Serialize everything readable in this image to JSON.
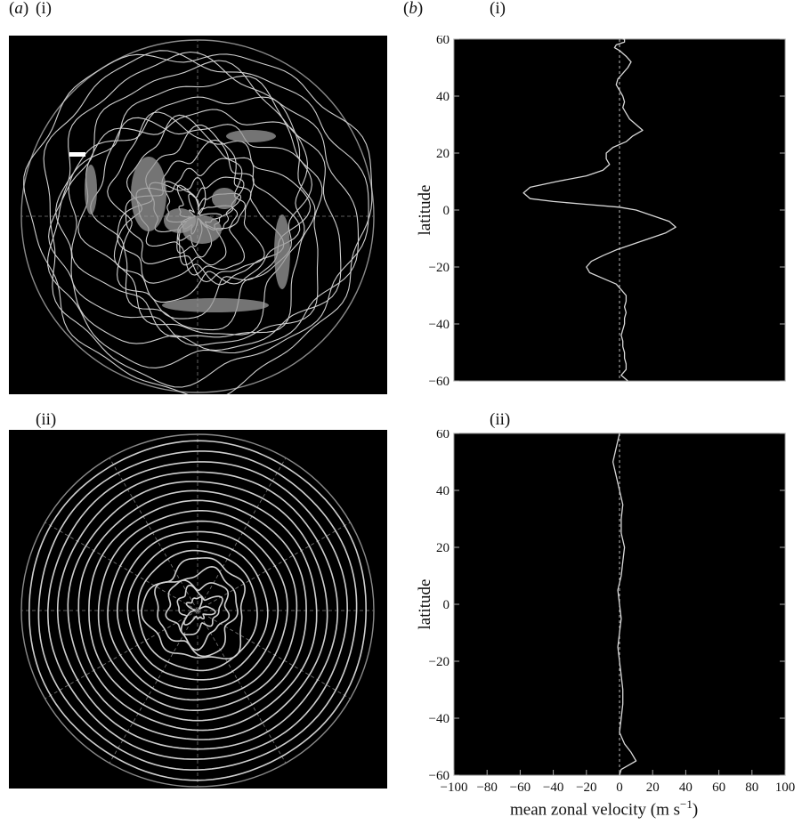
{
  "labels": {
    "a": "a",
    "b": "b",
    "a_i": "(i)",
    "b_i": "(i)",
    "a_ii": "(ii)",
    "b_ii": "(ii)"
  },
  "axes": {
    "ylabel": "latitude",
    "xlabel_main": "mean zonal velocity (m s",
    "xlabel_sup": "−1",
    "xlabel_end": ")"
  },
  "chart_data": [
    {
      "type": "line",
      "panel": "(b)(i)",
      "ylabel": "latitude",
      "ylim": [
        -60,
        60
      ],
      "xlim": [
        -100,
        100
      ],
      "yticks": [
        "60",
        "40",
        "20",
        "0",
        "−20",
        "−40",
        "−60"
      ],
      "xticks": [],
      "reference_line_x": 0,
      "series": [
        {
          "x": [
            5,
            1,
            4,
            4,
            3,
            3,
            2,
            2,
            1,
            2,
            3,
            3,
            4,
            3,
            4,
            4,
            1,
            -2,
            -10,
            -18,
            -20,
            -17,
            -10,
            -2,
            8,
            18,
            28,
            34,
            30,
            20,
            10,
            0,
            -20,
            -40,
            -54,
            -58,
            -54,
            -38,
            -20,
            -10,
            -6,
            -8,
            -8,
            -4,
            4,
            8,
            14,
            10,
            6,
            4,
            2,
            3,
            2,
            0,
            -2,
            -1,
            2,
            5,
            7,
            4,
            0,
            -3,
            -2,
            3,
            3,
            2
          ],
          "y": [
            -60,
            -58,
            -56,
            -54,
            -52,
            -50,
            -48,
            -46,
            -44,
            -42,
            -40,
            -38,
            -36,
            -34,
            -32,
            -30,
            -28,
            -26,
            -24,
            -22,
            -20,
            -18,
            -16,
            -14,
            -12,
            -10,
            -8,
            -6,
            -4,
            -2,
            0,
            1,
            2,
            3,
            4,
            6,
            8,
            10,
            12,
            14,
            16,
            18,
            20,
            22,
            24,
            26,
            28,
            30,
            32,
            34,
            36,
            38,
            40,
            42,
            44,
            46,
            48,
            50,
            52,
            54,
            56,
            57,
            58,
            59,
            60,
            60
          ]
        }
      ]
    },
    {
      "type": "line",
      "panel": "(b)(ii)",
      "ylabel": "latitude",
      "xlabel": "mean zonal velocity (m s−1)",
      "ylim": [
        -60,
        60
      ],
      "xlim": [
        -100,
        100
      ],
      "yticks": [
        "60",
        "40",
        "20",
        "0",
        "−20",
        "−40",
        "−60"
      ],
      "xticks": [
        "−100",
        "−80",
        "−60",
        "−40",
        "−20",
        "0",
        "20",
        "40",
        "60",
        "80",
        "100"
      ],
      "reference_line_x": 0,
      "series": [
        {
          "x": [
            0,
            1,
            10,
            7,
            3,
            0,
            1,
            2,
            2,
            1,
            0,
            -1,
            0,
            1,
            0,
            -1,
            1,
            2,
            3,
            1,
            1,
            2,
            0,
            -2,
            -4,
            -2,
            0
          ],
          "y": [
            -60,
            -58,
            -55,
            -52,
            -49,
            -45,
            -40,
            -35,
            -30,
            -25,
            -20,
            -15,
            -10,
            -5,
            0,
            5,
            10,
            15,
            20,
            25,
            30,
            35,
            40,
            45,
            50,
            55,
            60
          ]
        }
      ]
    }
  ]
}
